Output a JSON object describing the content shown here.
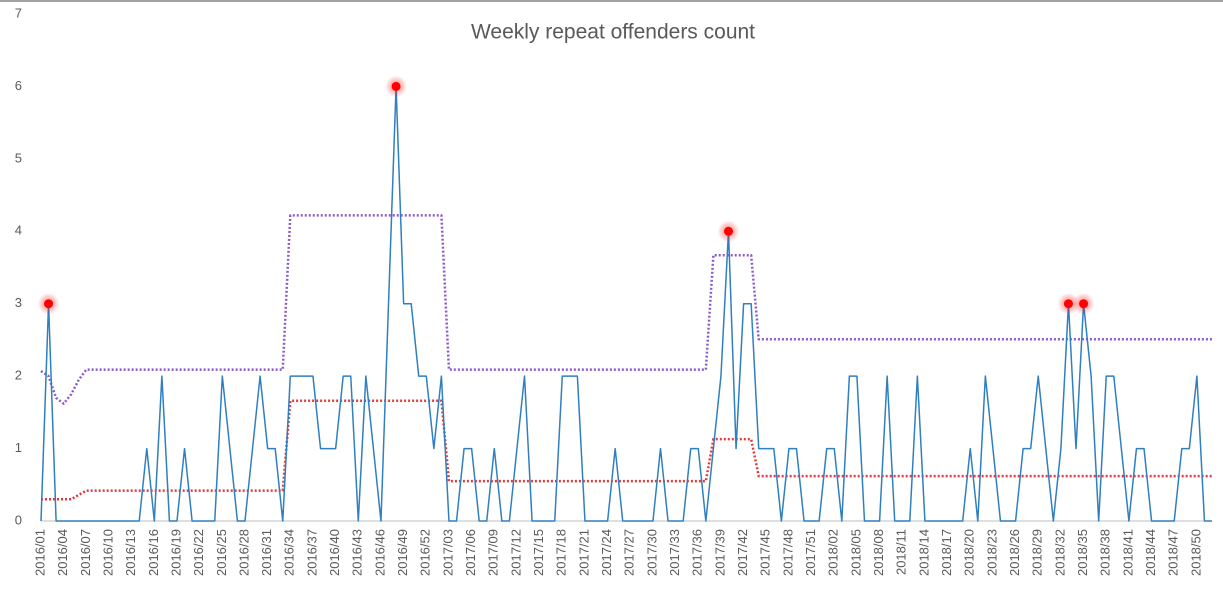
{
  "chart_data": {
    "type": "line",
    "title": "Weekly repeat offenders count",
    "ylim": [
      0,
      7
    ],
    "yticks": [
      0,
      1,
      2,
      3,
      4,
      5,
      6,
      7
    ],
    "grid": false,
    "categories": [
      "2016/01",
      null,
      null,
      "2016/04",
      null,
      null,
      "2016/07",
      null,
      null,
      "2016/10",
      null,
      null,
      "2016/13",
      null,
      null,
      "2016/16",
      null,
      null,
      "2016/19",
      null,
      null,
      "2016/22",
      null,
      null,
      "2016/25",
      null,
      null,
      "2016/28",
      null,
      null,
      "2016/31",
      null,
      null,
      "2016/34",
      null,
      null,
      "2016/37",
      null,
      null,
      "2016/40",
      null,
      null,
      "2016/43",
      null,
      null,
      "2016/46",
      null,
      null,
      "2016/49",
      null,
      null,
      "2016/52",
      null,
      null,
      "2017/03",
      null,
      null,
      "2017/06",
      null,
      null,
      "2017/09",
      null,
      null,
      "2017/12",
      null,
      null,
      "2017/15",
      null,
      null,
      "2017/18",
      null,
      null,
      "2017/21",
      null,
      null,
      "2017/24",
      null,
      null,
      "2017/27",
      null,
      null,
      "2017/30",
      null,
      null,
      "2017/33",
      null,
      null,
      "2017/36",
      null,
      null,
      "2017/39",
      null,
      null,
      "2017/42",
      null,
      null,
      "2017/45",
      null,
      null,
      "2017/48",
      null,
      null,
      "2017/51",
      null,
      null,
      "2018/02",
      null,
      null,
      "2018/05",
      null,
      null,
      "2018/08",
      null,
      null,
      "2018/11",
      null,
      null,
      "2018/14",
      null,
      null,
      "2018/17",
      null,
      null,
      "2018/20",
      null,
      null,
      "2018/23",
      null,
      null,
      "2018/26",
      null,
      null,
      "2018/29",
      null,
      null,
      "2018/32",
      null,
      null,
      "2018/35",
      null,
      null,
      "2018/38",
      null,
      null,
      "2018/41",
      null,
      null,
      "2018/44",
      null,
      null,
      "2018/47",
      null,
      null,
      "2018/50",
      null,
      null
    ],
    "series": [
      {
        "color": "#8e5cc7",
        "style": "dotted",
        "values": [
          2.07,
          2.0,
          1.7,
          1.62,
          1.75,
          1.95,
          2.09,
          2.09,
          2.09,
          2.09,
          2.09,
          2.09,
          2.09,
          2.09,
          2.09,
          2.09,
          2.09,
          2.09,
          2.09,
          2.09,
          2.09,
          2.09,
          2.09,
          2.09,
          2.09,
          2.09,
          2.09,
          2.09,
          2.09,
          2.09,
          2.09,
          2.09,
          2.09,
          4.22,
          4.22,
          4.22,
          4.22,
          4.22,
          4.22,
          4.22,
          4.22,
          4.22,
          4.22,
          4.22,
          4.22,
          4.22,
          4.22,
          4.22,
          4.22,
          4.22,
          4.22,
          4.22,
          4.22,
          4.22,
          2.09,
          2.09,
          2.09,
          2.09,
          2.09,
          2.09,
          2.09,
          2.09,
          2.09,
          2.09,
          2.09,
          2.09,
          2.09,
          2.09,
          2.09,
          2.09,
          2.09,
          2.09,
          2.09,
          2.09,
          2.09,
          2.09,
          2.09,
          2.09,
          2.09,
          2.09,
          2.09,
          2.09,
          2.09,
          2.09,
          2.09,
          2.09,
          2.09,
          2.09,
          2.09,
          3.67,
          3.67,
          3.67,
          3.67,
          3.67,
          3.67,
          2.51,
          2.51,
          2.51,
          2.51,
          2.51,
          2.51,
          2.51,
          2.51,
          2.51,
          2.51,
          2.51,
          2.51,
          2.51,
          2.51,
          2.51,
          2.51,
          2.51,
          2.51,
          2.51,
          2.51,
          2.51,
          2.51,
          2.51,
          2.51,
          2.51,
          2.51,
          2.51,
          2.51,
          2.51,
          2.51,
          2.51,
          2.51,
          2.51,
          2.51,
          2.51,
          2.51,
          2.51,
          2.51,
          2.51,
          2.51,
          2.51,
          2.51,
          2.51,
          2.51,
          2.51,
          2.51,
          2.51,
          2.51,
          2.51,
          2.51,
          2.51,
          2.51,
          2.51,
          2.51,
          2.51,
          2.51,
          2.51,
          2.51,
          2.51,
          2.51,
          2.51
        ]
      },
      {
        "color": "#e8393a",
        "style": "dotted",
        "values": [
          0.3,
          0.3,
          0.3,
          0.3,
          0.3,
          0.36,
          0.42,
          0.42,
          0.42,
          0.42,
          0.42,
          0.42,
          0.42,
          0.42,
          0.42,
          0.42,
          0.42,
          0.42,
          0.42,
          0.42,
          0.42,
          0.42,
          0.42,
          0.42,
          0.42,
          0.42,
          0.42,
          0.42,
          0.42,
          0.42,
          0.42,
          0.42,
          0.42,
          1.66,
          1.66,
          1.66,
          1.66,
          1.66,
          1.66,
          1.66,
          1.66,
          1.66,
          1.66,
          1.66,
          1.66,
          1.66,
          1.66,
          1.66,
          1.66,
          1.66,
          1.66,
          1.66,
          1.66,
          1.66,
          0.55,
          0.55,
          0.55,
          0.55,
          0.55,
          0.55,
          0.55,
          0.55,
          0.55,
          0.55,
          0.55,
          0.55,
          0.55,
          0.55,
          0.55,
          0.55,
          0.55,
          0.55,
          0.55,
          0.55,
          0.55,
          0.55,
          0.55,
          0.55,
          0.55,
          0.55,
          0.55,
          0.55,
          0.55,
          0.55,
          0.55,
          0.55,
          0.55,
          0.55,
          0.55,
          1.13,
          1.13,
          1.13,
          1.13,
          1.13,
          1.13,
          0.62,
          0.62,
          0.62,
          0.62,
          0.62,
          0.62,
          0.62,
          0.62,
          0.62,
          0.62,
          0.62,
          0.62,
          0.62,
          0.62,
          0.62,
          0.62,
          0.62,
          0.62,
          0.62,
          0.62,
          0.62,
          0.62,
          0.62,
          0.62,
          0.62,
          0.62,
          0.62,
          0.62,
          0.62,
          0.62,
          0.62,
          0.62,
          0.62,
          0.62,
          0.62,
          0.62,
          0.62,
          0.62,
          0.62,
          0.62,
          0.62,
          0.62,
          0.62,
          0.62,
          0.62,
          0.62,
          0.62,
          0.62,
          0.62,
          0.62,
          0.62,
          0.62,
          0.62,
          0.62,
          0.62,
          0.62,
          0.62,
          0.62,
          0.62,
          0.62,
          0.62
        ]
      },
      {
        "color": "#2f7fc1",
        "style": "solid",
        "values": [
          0,
          3,
          0,
          0,
          0,
          0,
          0,
          0,
          0,
          0,
          0,
          0,
          0,
          0,
          1,
          0,
          2,
          0,
          0,
          1,
          0,
          0,
          0,
          0,
          2,
          1,
          0,
          0,
          1,
          2,
          1,
          1,
          0,
          2,
          2,
          2,
          2,
          1,
          1,
          1,
          2,
          2,
          0,
          2,
          1,
          0,
          3,
          6,
          3,
          3,
          2,
          2,
          1,
          2,
          0,
          0,
          1,
          1,
          0,
          0,
          1,
          0,
          0,
          1,
          2,
          0,
          0,
          0,
          0,
          2,
          2,
          2,
          0,
          0,
          0,
          0,
          1,
          0,
          0,
          0,
          0,
          0,
          1,
          0,
          0,
          0,
          1,
          1,
          0,
          1,
          2,
          4,
          1,
          3,
          3,
          1,
          1,
          1,
          0,
          1,
          1,
          0,
          0,
          0,
          1,
          1,
          0,
          2,
          2,
          0,
          0,
          0,
          2,
          0,
          0,
          0,
          2,
          0,
          0,
          0,
          0,
          0,
          0,
          1,
          0,
          2,
          1,
          0,
          0,
          0,
          1,
          1,
          2,
          1,
          0,
          1,
          3,
          1,
          3,
          2,
          0,
          2,
          2,
          1,
          0,
          1,
          1,
          0,
          0,
          0,
          0,
          1,
          1,
          2,
          0,
          0
        ]
      },
      {
        "color": "#ff0000",
        "style": "markers",
        "values": [
          null,
          3,
          null,
          null,
          null,
          null,
          null,
          null,
          null,
          null,
          null,
          null,
          null,
          null,
          null,
          null,
          null,
          null,
          null,
          null,
          null,
          null,
          null,
          null,
          null,
          null,
          null,
          null,
          null,
          null,
          null,
          null,
          null,
          null,
          null,
          null,
          null,
          null,
          null,
          null,
          null,
          null,
          null,
          null,
          null,
          null,
          null,
          6,
          null,
          null,
          null,
          null,
          null,
          null,
          null,
          null,
          null,
          null,
          null,
          null,
          null,
          null,
          null,
          null,
          null,
          null,
          null,
          null,
          null,
          null,
          null,
          null,
          null,
          null,
          null,
          null,
          null,
          null,
          null,
          null,
          null,
          null,
          null,
          null,
          null,
          null,
          null,
          null,
          null,
          null,
          null,
          4,
          null,
          null,
          null,
          null,
          null,
          null,
          null,
          null,
          null,
          null,
          null,
          null,
          null,
          null,
          null,
          null,
          null,
          null,
          null,
          null,
          null,
          null,
          null,
          null,
          null,
          null,
          null,
          null,
          null,
          null,
          null,
          null,
          null,
          null,
          null,
          null,
          null,
          null,
          null,
          null,
          null,
          null,
          null,
          null,
          3,
          null,
          3,
          null,
          null,
          null,
          null,
          null,
          null,
          null,
          null,
          null,
          null,
          null,
          null,
          null,
          null,
          null,
          null,
          null
        ]
      }
    ]
  }
}
